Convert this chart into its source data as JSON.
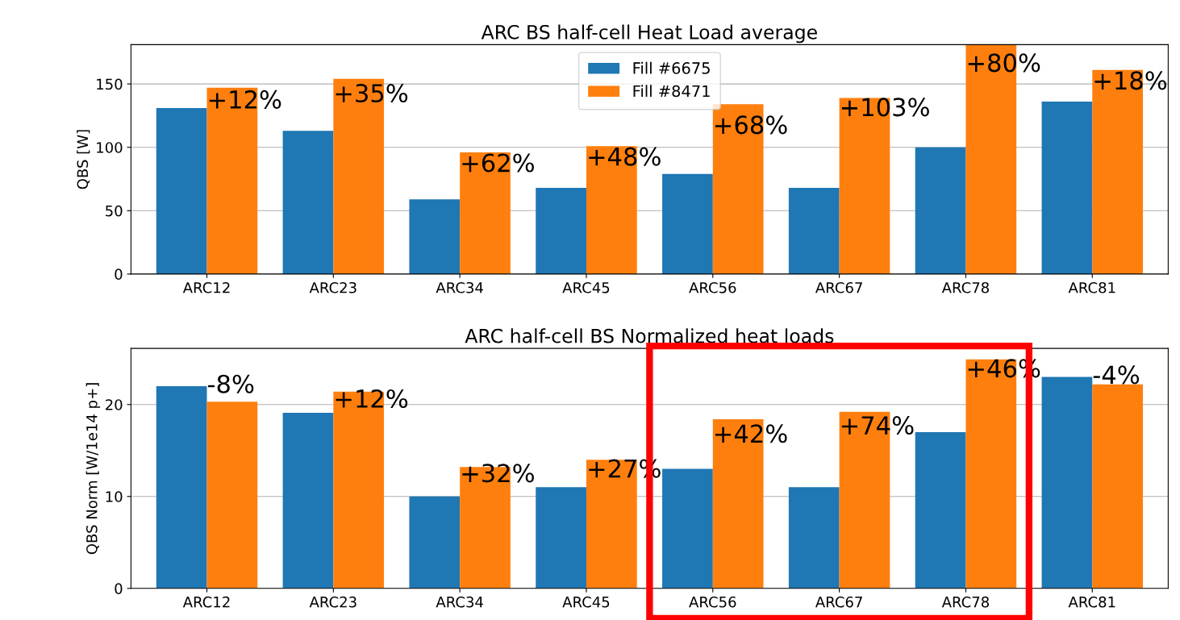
{
  "chart_data": [
    {
      "type": "bar",
      "title": "ARC BS half-cell Heat Load average",
      "ylabel": "QBS [W]",
      "categories": [
        "ARC12",
        "ARC23",
        "ARC34",
        "ARC45",
        "ARC56",
        "ARC67",
        "ARC78",
        "ARC81"
      ],
      "series": [
        {
          "name": "Fill #6675",
          "color": "#1f77b4",
          "values": [
            131,
            113,
            59,
            68,
            79,
            68,
            100,
            136
          ]
        },
        {
          "name": "Fill #8471",
          "color": "#ff7f0e",
          "values": [
            147,
            154,
            96,
            101,
            134,
            139,
            181,
            161
          ]
        }
      ],
      "ylim": [
        0,
        181
      ],
      "yticks": [
        0,
        50,
        100,
        150
      ],
      "grid": "y",
      "legend": "top",
      "annotations": [
        {
          "text": "+12%",
          "x": "ARC12",
          "y": 136
        },
        {
          "text": "+35%",
          "x": "ARC23",
          "y": 141
        },
        {
          "text": "+62%",
          "x": "ARC34",
          "y": 86
        },
        {
          "text": "+48%",
          "x": "ARC45",
          "y": 91
        },
        {
          "text": "+68%",
          "x": "ARC56",
          "y": 116
        },
        {
          "text": "+103%",
          "x": "ARC67",
          "y": 130
        },
        {
          "text": "+80%",
          "x": "ARC78",
          "y": 165
        },
        {
          "text": "+18%",
          "x": "ARC81",
          "y": 151
        }
      ]
    },
    {
      "type": "bar",
      "title": "ARC half-cell BS Normalized heat loads",
      "ylabel": "QBS Norm [W/1e14 p+]",
      "categories": [
        "ARC12",
        "ARC23",
        "ARC34",
        "ARC45",
        "ARC56",
        "ARC67",
        "ARC78",
        "ARC81"
      ],
      "series": [
        {
          "color": "#1f77b4",
          "values": [
            22.0,
            19.1,
            10.0,
            11.0,
            13.0,
            11.0,
            17.0,
            23.0
          ]
        },
        {
          "color": "#ff7f0e",
          "values": [
            20.3,
            21.4,
            13.2,
            14.0,
            18.4,
            19.2,
            24.9,
            22.2
          ]
        }
      ],
      "ylim": [
        0,
        26.1
      ],
      "yticks": [
        0,
        10,
        20
      ],
      "grid": "y",
      "annotations": [
        {
          "text": "-8%",
          "x": "ARC12",
          "y": 22.0
        },
        {
          "text": "+12%",
          "x": "ARC23",
          "y": 20.4
        },
        {
          "text": "+32%",
          "x": "ARC34",
          "y": 12.3
        },
        {
          "text": "+27%",
          "x": "ARC45",
          "y": 12.8
        },
        {
          "text": "+42%",
          "x": "ARC56",
          "y": 16.6
        },
        {
          "text": "+74%",
          "x": "ARC67",
          "y": 17.5
        },
        {
          "text": "+46%",
          "x": "ARC78",
          "y": 23.7
        },
        {
          "text": "-4%",
          "x": "ARC81",
          "y": 23.0
        }
      ]
    }
  ]
}
